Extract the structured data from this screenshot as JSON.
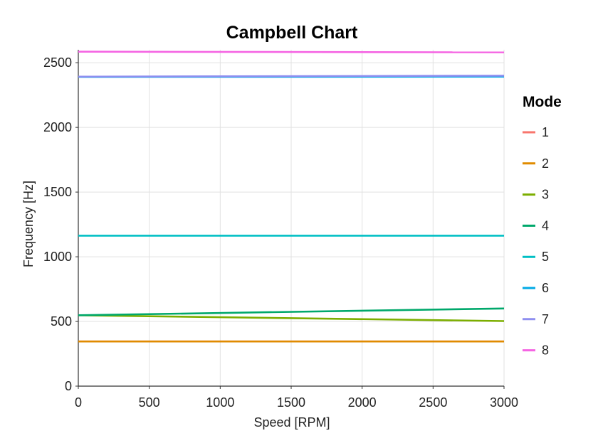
{
  "chart_data": {
    "type": "line",
    "title": "Campbell Chart",
    "xlabel": "Speed [RPM]",
    "ylabel": "Frequency [Hz]",
    "xlim": [
      0,
      3000
    ],
    "ylim": [
      0,
      2600
    ],
    "xticks": [
      0,
      500,
      1000,
      1500,
      2000,
      2500,
      3000
    ],
    "yticks": [
      0,
      500,
      1000,
      1500,
      2000,
      2500
    ],
    "grid": true,
    "legend_title": "Mode",
    "legend_position": "right",
    "x": [
      0,
      3000
    ],
    "series": [
      {
        "name": "1",
        "color": "#F8766D",
        "values": [
          345,
          345
        ]
      },
      {
        "name": "2",
        "color": "#E08B00",
        "values": [
          345,
          345
        ]
      },
      {
        "name": "3",
        "color": "#7CAE00",
        "values": [
          548,
          503
        ]
      },
      {
        "name": "4",
        "color": "#00A86B",
        "values": [
          548,
          600
        ]
      },
      {
        "name": "5",
        "color": "#00BFC4",
        "values": [
          1163,
          1163
        ]
      },
      {
        "name": "6",
        "color": "#00A9E6",
        "values": [
          2390,
          2392
        ]
      },
      {
        "name": "7",
        "color": "#8F8FF0",
        "values": [
          2392,
          2400
        ]
      },
      {
        "name": "8",
        "color": "#F564E3",
        "values": [
          2585,
          2580
        ]
      }
    ]
  }
}
